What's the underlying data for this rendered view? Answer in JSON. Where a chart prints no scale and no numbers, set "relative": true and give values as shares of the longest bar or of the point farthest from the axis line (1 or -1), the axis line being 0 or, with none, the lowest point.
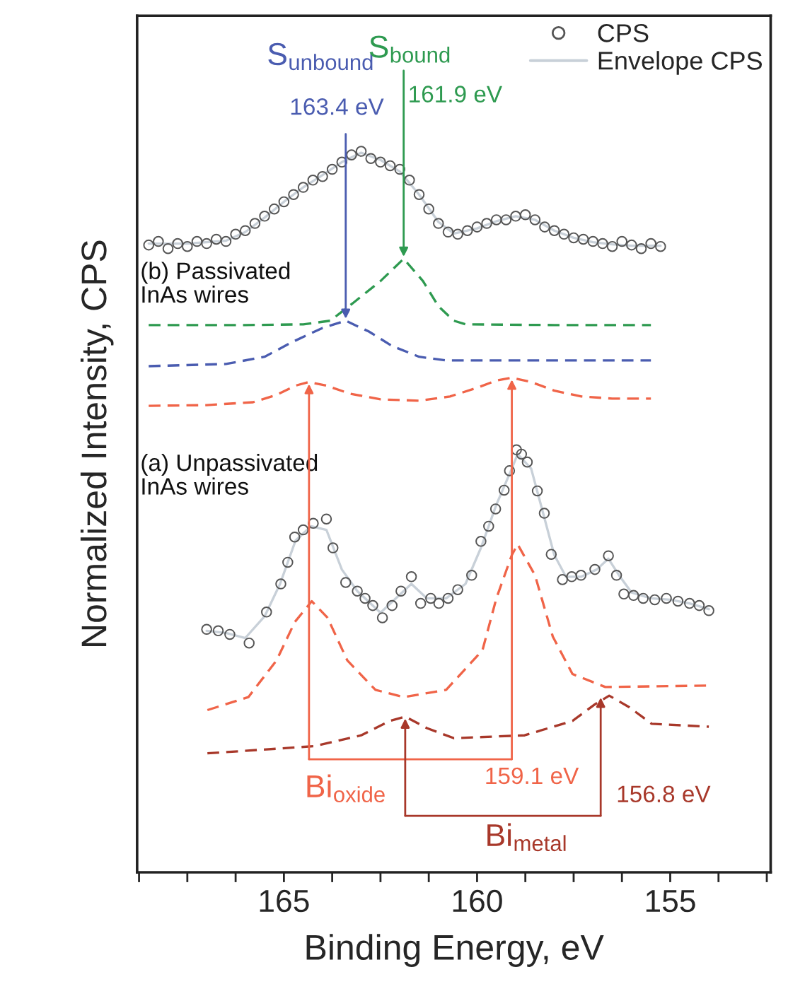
{
  "chart_data": {
    "type": "line",
    "relative": true,
    "xlabel": "Binding Energy, eV",
    "ylabel": "Normalized Intensity, CPS",
    "xlim": [
      168.8,
      152.4
    ],
    "xticks": [
      {
        "value": 168.75,
        "label": null
      },
      {
        "value": 167.5,
        "label": null
      },
      {
        "value": 166.25,
        "label": null
      },
      165,
      {
        "value": 163.75,
        "label": null
      },
      {
        "value": 162.5,
        "label": null
      },
      {
        "value": 161.25,
        "label": null
      },
      160,
      {
        "value": 158.75,
        "label": null
      },
      {
        "value": 157.5,
        "label": null
      },
      {
        "value": 156.25,
        "label": null
      },
      155,
      {
        "value": 153.75,
        "label": null
      },
      {
        "value": 152.5,
        "label": null
      }
    ],
    "tick_labels": "x",
    "grid": false,
    "legend": "top right",
    "series": [
      {
        "name": "CPS",
        "type": "scatter",
        "marker": "circle",
        "color": "#555555",
        "x": [
          168.5,
          168.25,
          168.0,
          167.75,
          167.5,
          167.25,
          167.0,
          166.75,
          166.5,
          166.25,
          166.0,
          165.75,
          165.5,
          165.25,
          165.0,
          164.75,
          164.5,
          164.25,
          164.0,
          163.75,
          163.5,
          163.25,
          163.0,
          162.75,
          162.5,
          162.25,
          162.0,
          161.75,
          161.5,
          161.25,
          161.0,
          160.75,
          160.5,
          160.25,
          160.0,
          159.75,
          159.5,
          159.25,
          159.0,
          158.75,
          158.5,
          158.25,
          158.0,
          157.75,
          157.5,
          157.25,
          157.0,
          156.75,
          156.5,
          156.25,
          156.0,
          155.75,
          155.5,
          155.25,
          167.0,
          166.7,
          166.4,
          165.9,
          165.45,
          165.08,
          164.9,
          164.72,
          164.5,
          164.24,
          163.9,
          163.73,
          163.4,
          163.1,
          162.9,
          162.7,
          162.45,
          162.2,
          161.97,
          161.7,
          161.46,
          161.2,
          160.99,
          160.75,
          160.5,
          160.14,
          159.9,
          159.7,
          159.52,
          159.3,
          159.16,
          158.98,
          158.85,
          158.7,
          158.44,
          158.26,
          158.08,
          157.79,
          157.55,
          157.31,
          156.95,
          156.6,
          156.39,
          156.2,
          155.95,
          155.7,
          155.4,
          155.1,
          154.8,
          154.5,
          154.25,
          154.0
        ],
        "values": [
          0.87,
          0.875,
          0.865,
          0.872,
          0.868,
          0.875,
          0.872,
          0.878,
          0.875,
          0.885,
          0.89,
          0.9,
          0.91,
          0.92,
          0.93,
          0.94,
          0.95,
          0.96,
          0.965,
          0.975,
          0.985,
          0.995,
          1.0,
          0.99,
          0.985,
          0.98,
          0.975,
          0.96,
          0.94,
          0.92,
          0.9,
          0.888,
          0.885,
          0.89,
          0.895,
          0.9,
          0.905,
          0.905,
          0.91,
          0.912,
          0.905,
          0.895,
          0.89,
          0.885,
          0.88,
          0.878,
          0.875,
          0.872,
          0.868,
          0.875,
          0.87,
          0.865,
          0.872,
          0.868,
          0.337,
          0.335,
          0.33,
          0.318,
          0.361,
          0.4,
          0.43,
          0.465,
          0.475,
          0.484,
          0.49,
          0.45,
          0.402,
          0.39,
          0.38,
          0.37,
          0.353,
          0.37,
          0.39,
          0.41,
          0.373,
          0.38,
          0.373,
          0.38,
          0.392,
          0.412,
          0.459,
          0.48,
          0.504,
          0.53,
          0.557,
          0.586,
          0.58,
          0.569,
          0.529,
          0.498,
          0.441,
          0.406,
          0.41,
          0.412,
          0.42,
          0.439,
          0.412,
          0.386,
          0.384,
          0.38,
          0.378,
          0.38,
          0.376,
          0.373,
          0.37,
          0.363
        ]
      },
      {
        "name": "Envelope CPS",
        "type": "line",
        "marker": "none",
        "line_style": "solid",
        "color": "#c8d0d8",
        "x": [
          168.5,
          167.5,
          166.5,
          166.0,
          165.5,
          165.0,
          164.5,
          164.0,
          163.5,
          163.0,
          162.5,
          162.0,
          161.5,
          161.0,
          160.6,
          160.0,
          159.5,
          159.0,
          158.5,
          158.0,
          157.5,
          157.0,
          156.5,
          156.0,
          155.25,
          null,
          167.0,
          166.5,
          166.0,
          165.5,
          165.1,
          164.7,
          164.3,
          163.9,
          163.5,
          163.1,
          162.5,
          162.0,
          161.7,
          161.3,
          160.8,
          160.3,
          159.9,
          159.5,
          159.1,
          158.95,
          158.6,
          158.3,
          158.0,
          157.7,
          157.3,
          156.9,
          156.6,
          156.3,
          156.0,
          155.5,
          155.0,
          154.5,
          154.0
        ],
        "values": [
          0.872,
          0.872,
          0.876,
          0.888,
          0.908,
          0.93,
          0.95,
          0.967,
          0.985,
          0.998,
          0.988,
          0.972,
          0.94,
          0.902,
          0.886,
          0.893,
          0.903,
          0.91,
          0.905,
          0.89,
          0.88,
          0.874,
          0.871,
          0.869,
          0.869,
          null,
          0.335,
          0.332,
          0.325,
          0.355,
          0.4,
          0.46,
          0.48,
          0.475,
          0.42,
          0.39,
          0.36,
          0.385,
          0.4,
          0.38,
          0.38,
          0.4,
          0.45,
          0.51,
          0.56,
          0.58,
          0.56,
          0.5,
          0.44,
          0.41,
          0.41,
          0.42,
          0.435,
          0.41,
          0.388,
          0.38,
          0.378,
          0.373,
          0.365
        ]
      },
      {
        "type": "line",
        "marker": "none",
        "line_style": "dashed",
        "color": "#2e9a50",
        "x": [
          168.5,
          166.0,
          164.5,
          163.8,
          163.2,
          162.5,
          161.9,
          161.4,
          161.0,
          160.6,
          160.3,
          158.0,
          155.5
        ],
        "values": [
          0.759,
          0.759,
          0.76,
          0.765,
          0.79,
          0.82,
          0.851,
          0.82,
          0.785,
          0.765,
          0.76,
          0.759,
          0.759
        ]
      },
      {
        "type": "line",
        "marker": "none",
        "line_style": "dashed",
        "color": "#4a5cb0",
        "x": [
          168.5,
          166.5,
          165.5,
          164.8,
          164.0,
          163.4,
          162.8,
          162.2,
          161.5,
          160.8,
          158.0,
          155.5
        ],
        "values": [
          0.702,
          0.705,
          0.715,
          0.735,
          0.755,
          0.765,
          0.75,
          0.73,
          0.715,
          0.71,
          0.71,
          0.71
        ]
      },
      {
        "type": "line",
        "marker": "none",
        "line_style": "dashed",
        "color": "#f06448",
        "x": [
          168.5,
          167.0,
          165.8,
          165.2,
          164.7,
          164.35,
          163.9,
          163.3,
          162.5,
          161.5,
          160.7,
          160.0,
          159.5,
          159.1,
          158.6,
          158.0,
          157.3,
          156.5,
          155.5
        ],
        "values": [
          0.647,
          0.648,
          0.652,
          0.662,
          0.675,
          0.68,
          0.675,
          0.664,
          0.656,
          0.654,
          0.66,
          0.672,
          0.682,
          0.686,
          0.68,
          0.668,
          0.66,
          0.657,
          0.657
        ]
      },
      {
        "type": "line",
        "marker": "none",
        "line_style": "dashed",
        "color": "#f06448",
        "x": [
          166.98,
          165.92,
          165.19,
          164.72,
          164.28,
          163.87,
          163.36,
          162.63,
          161.9,
          160.8,
          159.86,
          159.5,
          159.1,
          158.95,
          158.5,
          158.04,
          157.53,
          156.68,
          154.0
        ],
        "values": [
          0.225,
          0.243,
          0.294,
          0.347,
          0.376,
          0.353,
          0.294,
          0.253,
          0.243,
          0.253,
          0.308,
          0.38,
          0.44,
          0.455,
          0.412,
          0.327,
          0.275,
          0.257,
          0.259
        ]
      },
      {
        "type": "line",
        "marker": "none",
        "line_style": "dashed",
        "color": "#a8382a",
        "x": [
          166.98,
          164.2,
          163.0,
          162.26,
          161.86,
          161.3,
          160.6,
          158.77,
          157.53,
          156.95,
          156.58,
          156.06,
          155.48,
          154.0
        ],
        "values": [
          0.165,
          0.175,
          0.19,
          0.21,
          0.216,
          0.2,
          0.186,
          0.19,
          0.21,
          0.233,
          0.245,
          0.229,
          0.206,
          0.202
        ]
      }
    ],
    "annotations": [
      "(b) Passivated\nInAs wires",
      "(a) Unpassivated\nInAs wires",
      "S$_{unbound}$",
      {
        "text": "163.4 eV",
        "x": 163.4,
        "y": 0.765
      },
      {
        "text": "S$_{bound}$",
        "x": 161.9,
        "y": 0.851
      },
      {
        "text": "161.9 eV",
        "x": 161.9,
        "y": 0.851
      },
      {
        "text": "Bi$_{oxide}$",
        "x": 164.35,
        "y": 0.68
      },
      {
        "text": "159.1 eV",
        "x": 159.1,
        "y": 0.686
      },
      "Bi$_{metal}$",
      {
        "text": "156.8 eV",
        "x": 156.8,
        "y": 0.245
      }
    ]
  }
}
